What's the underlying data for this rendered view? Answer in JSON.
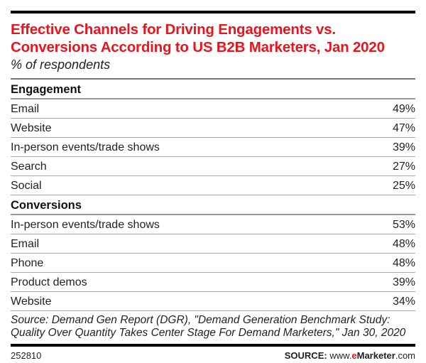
{
  "chart_data": {
    "type": "table",
    "title": "Effective Channels for Driving Engagements vs. Conversions According to US B2B Marketers, Jan 2020",
    "subtitle": "% of respondents",
    "sections": [
      {
        "name": "Engagement",
        "rows": [
          {
            "label": "Email",
            "value": "49%"
          },
          {
            "label": "Website",
            "value": "47%"
          },
          {
            "label": "In-person events/trade shows",
            "value": "39%"
          },
          {
            "label": "Search",
            "value": "27%"
          },
          {
            "label": "Social",
            "value": "25%"
          }
        ]
      },
      {
        "name": "Conversions",
        "rows": [
          {
            "label": "In-person events/trade shows",
            "value": "53%"
          },
          {
            "label": "Email",
            "value": "48%"
          },
          {
            "label": "Phone",
            "value": "48%"
          },
          {
            "label": "Product demos",
            "value": "39%"
          },
          {
            "label": "Website",
            "value": "34%"
          }
        ]
      }
    ],
    "source_note": "Source: Demand Gen Report (DGR), \"Demand Generation Benchmark Study: Quality Over Quantity Takes Center Stage For Demand Marketers,\" Jan 30, 2020"
  },
  "footer": {
    "id": "252810",
    "source_label": "SOURCE:",
    "www": "www.",
    "e": "e",
    "marketer": "Marketer",
    "com": ".com"
  },
  "colors": {
    "accent": "#e8141e"
  }
}
